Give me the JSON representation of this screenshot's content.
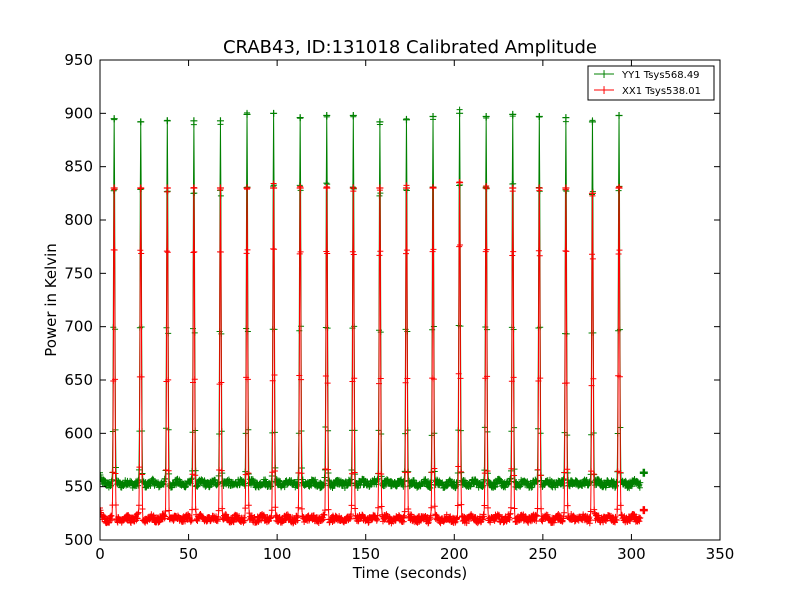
{
  "chart_data": {
    "type": "line",
    "title": "CRAB43, ID:131018 Calibrated Amplitude",
    "xlabel": "Time (seconds)",
    "ylabel": "Power in Kelvin",
    "xlim": [
      0,
      350
    ],
    "ylim": [
      500,
      950
    ],
    "xticks": [
      0,
      50,
      100,
      150,
      200,
      250,
      300,
      350
    ],
    "yticks": [
      500,
      550,
      600,
      650,
      700,
      750,
      800,
      850,
      900,
      950
    ],
    "grid": false,
    "legend_position": "top-right",
    "series": [
      {
        "name": "YY1 Tsys568.49",
        "color": "#008000",
        "baseline": 553,
        "start_value": 563,
        "end_value": 563,
        "peak_times": [
          8,
          23,
          38,
          53,
          68,
          83,
          98,
          113,
          128,
          143,
          158,
          173,
          188,
          203,
          218,
          233,
          248,
          263,
          278,
          293
        ],
        "peak_values": [
          895,
          892,
          893,
          893,
          893,
          899,
          900,
          896,
          898,
          898,
          892,
          894,
          897,
          900,
          897,
          899,
          897,
          896,
          892,
          898
        ]
      },
      {
        "name": "XX1 Tsys538.01",
        "color": "#ff0000",
        "baseline": 520,
        "start_value": 530,
        "end_value": 528,
        "peak_times": [
          8,
          23,
          38,
          53,
          68,
          83,
          98,
          113,
          128,
          143,
          158,
          173,
          188,
          203,
          218,
          233,
          248,
          263,
          278,
          293
        ],
        "peak_values": [
          830,
          830,
          830,
          830,
          830,
          830,
          830,
          830,
          830,
          830,
          830,
          830,
          830,
          835,
          830,
          830,
          830,
          830,
          825,
          830
        ]
      }
    ]
  }
}
